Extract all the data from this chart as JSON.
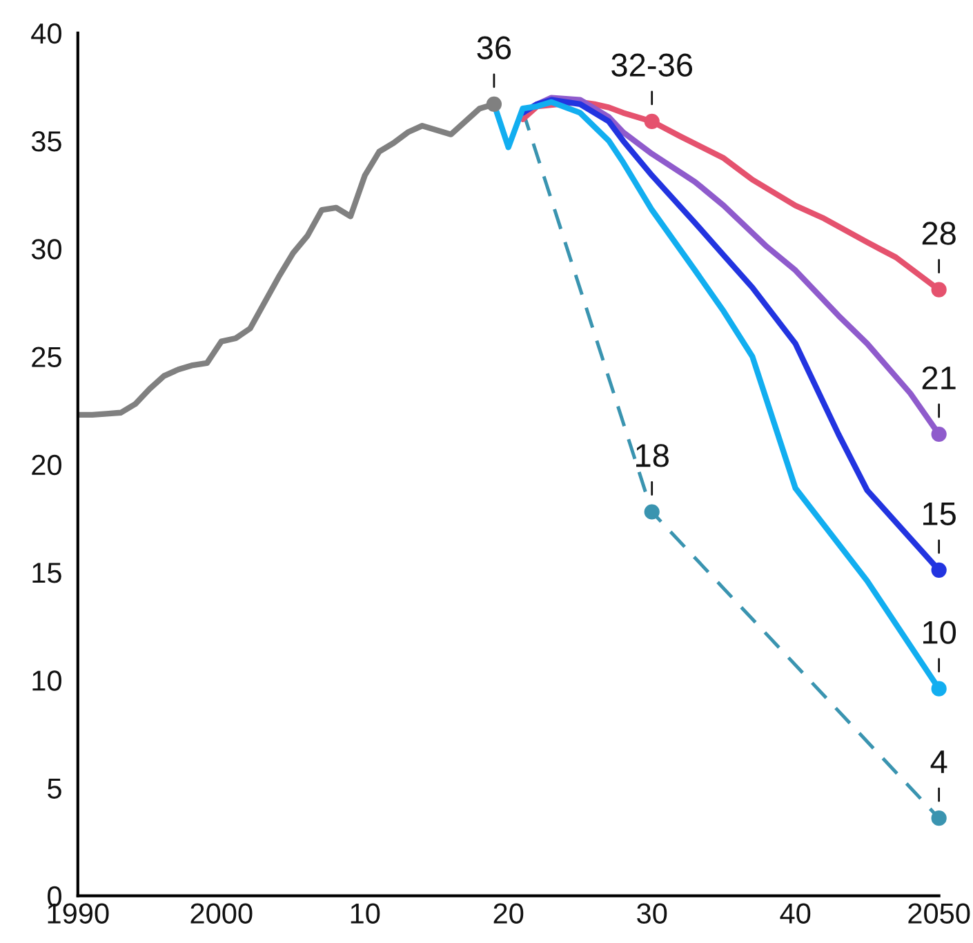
{
  "chart_data": {
    "type": "line",
    "xlim": [
      1990,
      2050
    ],
    "ylim": [
      0,
      40
    ],
    "xticks": [
      1990,
      2000,
      {
        "value": 2010,
        "label": "10"
      },
      {
        "value": 2020,
        "label": "20"
      },
      {
        "value": 2030,
        "label": "30"
      },
      {
        "value": 2040,
        "label": "40"
      },
      2050
    ],
    "yticks": [
      0,
      5,
      10,
      15,
      20,
      25,
      30,
      35,
      40
    ],
    "grid": false,
    "legend": false,
    "series": [
      {
        "color": "#808080",
        "line_style": "solid",
        "x": [
          1990,
          1991,
          1992,
          1993,
          1994,
          1995,
          1996,
          1997,
          1998,
          1999,
          2000,
          2001,
          2002,
          2003,
          2004,
          2005,
          2006,
          2007,
          2008,
          2009,
          2010,
          2011,
          2012,
          2013,
          2014,
          2015,
          2016,
          2017,
          2018,
          2019
        ],
        "values": [
          22.3,
          22.3,
          22.35,
          22.4,
          22.8,
          23.5,
          24.1,
          24.4,
          24.6,
          24.7,
          25.7,
          25.85,
          26.3,
          27.5,
          28.7,
          29.8,
          30.6,
          31.8,
          31.9,
          31.5,
          33.4,
          34.5,
          34.9,
          35.4,
          35.7,
          35.5,
          35.3,
          35.9,
          36.5,
          36.7
        ]
      },
      {
        "color": "#3a94b0",
        "line_style": "dashed",
        "x": [
          2021,
          2030,
          2050
        ],
        "values": [
          36.4,
          17.8,
          3.6
        ]
      },
      {
        "color": "#e5526e",
        "line_style": "solid",
        "x": [
          2021,
          2022,
          2025,
          2026,
          2027,
          2028,
          2029,
          2030,
          2032,
          2035,
          2037,
          2040,
          2042,
          2045,
          2047,
          2050
        ],
        "values": [
          36.0,
          36.6,
          36.8,
          36.7,
          36.55,
          36.3,
          36.1,
          35.9,
          35.2,
          34.2,
          33.2,
          32.0,
          31.4,
          30.3,
          29.6,
          28.1
        ]
      },
      {
        "color": "#8f5bcc",
        "line_style": "solid",
        "x": [
          2021,
          2022,
          2023,
          2025,
          2027,
          2028,
          2030,
          2033,
          2035,
          2038,
          2040,
          2043,
          2045,
          2048,
          2050
        ],
        "values": [
          36.3,
          36.7,
          37.0,
          36.9,
          36.1,
          35.4,
          34.4,
          33.1,
          32.0,
          30.1,
          29.0,
          26.9,
          25.6,
          23.3,
          21.4
        ]
      },
      {
        "color": "#2234e0",
        "line_style": "solid",
        "x": [
          2021,
          2022,
          2023,
          2025,
          2027,
          2028,
          2030,
          2033,
          2035,
          2037,
          2040,
          2043,
          2045,
          2050
        ],
        "values": [
          36.3,
          36.7,
          36.9,
          36.7,
          35.9,
          35.0,
          33.4,
          31.2,
          29.7,
          28.2,
          25.6,
          21.4,
          18.8,
          15.1
        ]
      },
      {
        "color": "#12aef0",
        "line_style": "solid",
        "x": [
          2019,
          2020,
          2021,
          2022,
          2023,
          2025,
          2027,
          2028,
          2030,
          2033,
          2035,
          2037,
          2040,
          2045,
          2050
        ],
        "values": [
          36.7,
          34.7,
          36.5,
          36.6,
          36.8,
          36.3,
          35.0,
          34.0,
          31.8,
          29.0,
          27.1,
          25.0,
          18.9,
          14.6,
          9.6
        ]
      }
    ],
    "annotations": [
      {
        "text": "36",
        "x": 2019,
        "y": 36.7
      },
      {
        "text": "32-36",
        "x": 2030,
        "y": 35.9
      },
      {
        "text": "18",
        "x": 2030,
        "y": 17.8
      },
      {
        "text": "28",
        "x": 2050,
        "y": 28.1
      },
      {
        "text": "21",
        "x": 2050,
        "y": 21.4
      },
      {
        "text": "15",
        "x": 2050,
        "y": 15.1
      },
      {
        "text": "10",
        "x": 2050,
        "y": 9.6
      },
      {
        "text": "4",
        "x": 2050,
        "y": 3.6
      }
    ]
  }
}
